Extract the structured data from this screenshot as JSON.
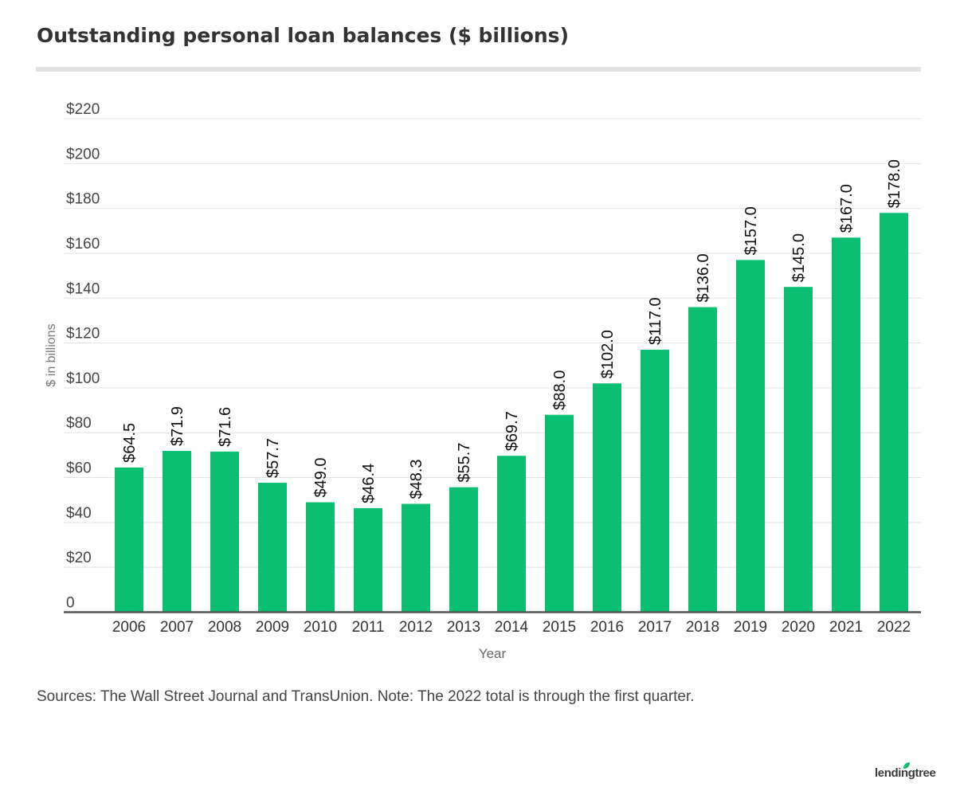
{
  "title": "Outstanding personal loan balances ($ billions)",
  "source_note": "Sources: The Wall Street Journal and TransUnion. Note: The 2022 total is through the first quarter.",
  "logo": {
    "text": "lendingtree",
    "icon": "leaf-icon"
  },
  "colors": {
    "bar": "#0abf72",
    "grid": "#e3e3e3",
    "axis": "#555555",
    "text": "#333333",
    "title_rule": "#e1e1e1"
  },
  "chart_data": {
    "type": "bar",
    "title": "Outstanding personal loan balances ($ billions)",
    "xlabel": "Year",
    "ylabel": "$ in billions",
    "categories": [
      "2006",
      "2007",
      "2008",
      "2009",
      "2010",
      "2011",
      "2012",
      "2013",
      "2014",
      "2015",
      "2016",
      "2017",
      "2018",
      "2019",
      "2020",
      "2021",
      "2022"
    ],
    "values": [
      64.5,
      71.9,
      71.6,
      57.7,
      49.0,
      46.4,
      48.3,
      55.7,
      69.7,
      88.0,
      102.0,
      117.0,
      136.0,
      157.0,
      145.0,
      167.0,
      178.0
    ],
    "data_labels": [
      "$64.5",
      "$71.9",
      "$71.6",
      "$57.7",
      "$49.0",
      "$46.4",
      "$48.3",
      "$55.7",
      "$69.7",
      "$88.0",
      "$102.0",
      "$117.0",
      "$136.0",
      "$157.0",
      "$145.0",
      "$167.0",
      "$178.0"
    ],
    "ylim": [
      0,
      220
    ],
    "yticks": [
      0,
      20,
      40,
      60,
      80,
      100,
      120,
      140,
      160,
      180,
      200,
      220
    ],
    "ytick_labels": [
      "0",
      "$20",
      "$40",
      "$60",
      "$80",
      "$100",
      "$120",
      "$140",
      "$160",
      "$180",
      "$200",
      "$220"
    ],
    "grid": true,
    "legend": "none",
    "data_label_orientation": "vertical"
  }
}
